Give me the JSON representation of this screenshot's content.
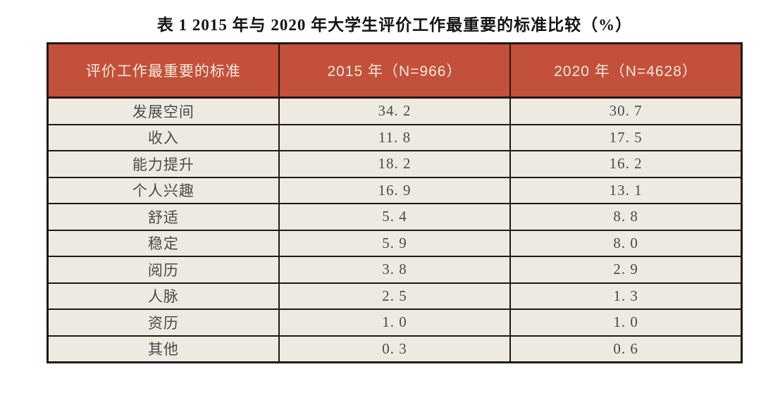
{
  "title": "表 1  2015 年与 2020 年大学生评价工作最重要的标准比较（%）",
  "colors": {
    "header_bg": "#c2503a",
    "header_text": "#f8e9dc",
    "row_bg": "#edeae2",
    "border": "#241812",
    "body_text": "#4a4a48",
    "title_text": "#141414"
  },
  "table": {
    "columns": [
      "评价工作最重要的标准",
      "2015 年（N=966）",
      "2020 年（N=4628）"
    ],
    "rows": [
      {
        "label": "发展空间",
        "v2015": "34. 2",
        "v2020": "30. 7"
      },
      {
        "label": "收入",
        "v2015": "11. 8",
        "v2020": "17. 5"
      },
      {
        "label": "能力提升",
        "v2015": "18. 2",
        "v2020": "16. 2"
      },
      {
        "label": "个人兴趣",
        "v2015": "16. 9",
        "v2020": "13. 1"
      },
      {
        "label": "舒适",
        "v2015": "5. 4",
        "v2020": "8. 8"
      },
      {
        "label": "稳定",
        "v2015": "5. 9",
        "v2020": "8. 0"
      },
      {
        "label": "阅历",
        "v2015": "3. 8",
        "v2020": "2. 9"
      },
      {
        "label": "人脉",
        "v2015": "2. 5",
        "v2020": "1. 3"
      },
      {
        "label": "资历",
        "v2015": "1. 0",
        "v2020": "1. 0"
      },
      {
        "label": "其他",
        "v2015": "0. 3",
        "v2020": "0. 6"
      }
    ]
  },
  "chart_data": {
    "type": "table",
    "title": "表1 2015年与2020年大学生评价工作最重要的标准比较（%）",
    "categories": [
      "发展空间",
      "收入",
      "能力提升",
      "个人兴趣",
      "舒适",
      "稳定",
      "阅历",
      "人脉",
      "资历",
      "其他"
    ],
    "series": [
      {
        "name": "2015年（N=966）",
        "values": [
          34.2,
          11.8,
          18.2,
          16.9,
          5.4,
          5.9,
          3.8,
          2.5,
          1.0,
          0.3
        ]
      },
      {
        "name": "2020年（N=4628）",
        "values": [
          30.7,
          17.5,
          16.2,
          13.1,
          8.8,
          8.0,
          2.9,
          1.3,
          1.0,
          0.6
        ]
      }
    ],
    "unit": "%"
  }
}
